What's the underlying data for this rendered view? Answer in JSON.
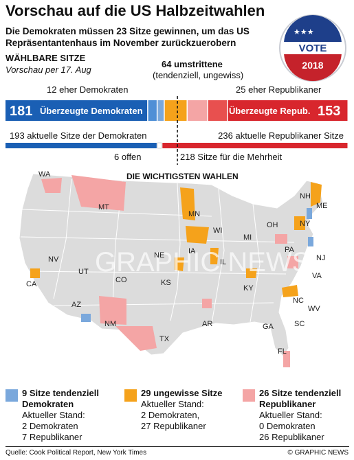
{
  "title": "Vorschau auf die US Halbzeitwahlen",
  "subtitle": "Die Demokraten müssen 23 Sitze gewinnen, um das US Repräsentantenhaus im November zurückzuerobern",
  "badge": {
    "vote": "VOTE",
    "year": "2018"
  },
  "seats_heading": "WÄHLBARE SITZE",
  "forecast_date": "Vorschau per 17. Aug",
  "labels": {
    "tossup_count": "64 umstrittene",
    "tossup_sub": "(tendenziell, ungewiss)",
    "lean_dem": "12 eher Demokraten",
    "lean_rep": "25 eher Republikaner",
    "solid_dem_num": "181",
    "solid_dem_text": "Überzeugte Demokraten",
    "solid_rep_text": "Überzeugte Repub.",
    "solid_rep_num": "153",
    "current_dem": "193 aktuelle Sitze der Demokraten",
    "current_rep": "236 aktuelle Republikaner Sitze",
    "open": "6 offen",
    "majority": "218 Sitze für die Mehrheit"
  },
  "chart_data": {
    "type": "bar",
    "title": "WÄHLBARE SITZE",
    "total_seats": 435,
    "majority": 218,
    "forecast_segments": [
      {
        "name": "Überzeugte Demokraten",
        "value": 181,
        "color": "#1a5fb4"
      },
      {
        "name": "eher Demokraten",
        "value": 12,
        "color": "#4f8fd6"
      },
      {
        "name": "tendenziell Demokraten",
        "value": 9,
        "color": "#7aa8dc"
      },
      {
        "name": "ungewisse Sitze",
        "value": 29,
        "color": "#f5a21b"
      },
      {
        "name": "tendenziell Republikaner",
        "value": 26,
        "color": "#f4a5a5"
      },
      {
        "name": "eher Republikaner",
        "value": 25,
        "color": "#e8504f"
      },
      {
        "name": "Überzeugte Repub.",
        "value": 153,
        "color": "#d8262d"
      }
    ],
    "current_segments": [
      {
        "name": "aktuelle Sitze der Demokraten",
        "value": 193,
        "color": "#1a5fb4"
      },
      {
        "name": "offen",
        "value": 6,
        "color": "#ffffff"
      },
      {
        "name": "aktuelle Republikaner Sitze",
        "value": 236,
        "color": "#d8262d"
      }
    ]
  },
  "map": {
    "heading": "DIE WICHTIGSTEN WAHLEN",
    "watermark": "GRAPHIC NEWS",
    "states": [
      "WA",
      "MT",
      "NH",
      "ME",
      "MN",
      "WI",
      "MI",
      "OH",
      "NY",
      "PA",
      "NJ",
      "IA",
      "NE",
      "IL",
      "NV",
      "UT",
      "CA",
      "CO",
      "KS",
      "KY",
      "VA",
      "NC",
      "WV",
      "AZ",
      "NM",
      "AR",
      "TX",
      "GA",
      "SC",
      "FL"
    ]
  },
  "legend": [
    {
      "title": "9 Sitze tendenziell Demokraten",
      "status": [
        "Aktueller Stand:",
        "2 Demokraten",
        "7 Republikaner"
      ],
      "color": "#7aa8dc"
    },
    {
      "title": "29 ungewisse Sitze",
      "status": [
        "Aktueller Stand:",
        "2 Demokraten,",
        "27 Republikaner"
      ],
      "color": "#f5a21b"
    },
    {
      "title": "26 Sitze tendenziell Republikaner",
      "status": [
        "Aktueller Stand:",
        "0 Demokraten",
        "26 Republikaner"
      ],
      "color": "#f4a5a5"
    }
  ],
  "source": "Quelle: Cook Political Report, New York Times",
  "copyright": "© GRAPHIC NEWS"
}
